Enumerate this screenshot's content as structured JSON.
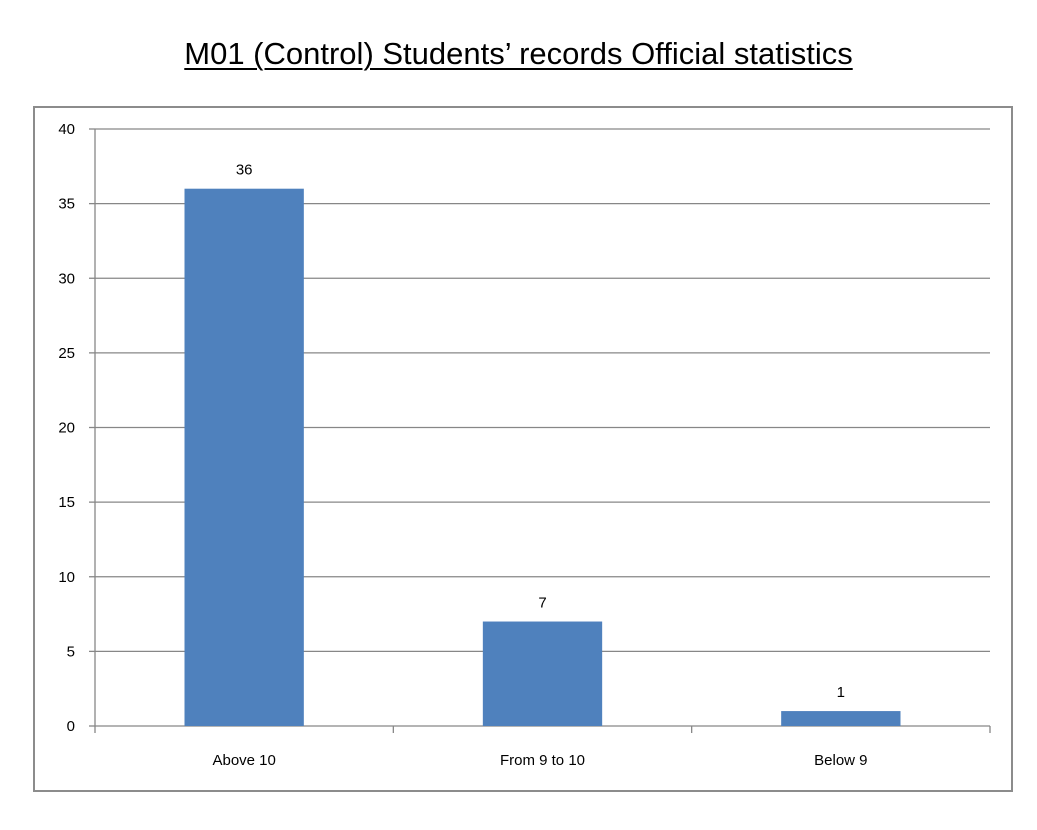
{
  "chart_data": {
    "type": "bar",
    "title": "M01 (Control) Students’ records Official statistics",
    "xlabel": "",
    "ylabel": "",
    "categories": [
      "Above 10",
      "From 9 to 10",
      "Below 9"
    ],
    "values": [
      36,
      7,
      1
    ],
    "data_labels": [
      "36",
      "7",
      "1"
    ],
    "ylim": [
      0,
      40
    ],
    "yticks": [
      0,
      5,
      10,
      15,
      20,
      25,
      30,
      35,
      40
    ],
    "ytick_labels": [
      "0",
      "5",
      "10",
      "15",
      "20",
      "25",
      "30",
      "35",
      "40"
    ],
    "grid": true,
    "legend": "none",
    "colors": {
      "bar": "#4f81bd",
      "grid": "#878787",
      "axis": "#878787",
      "frame": "#8c8c8c"
    }
  }
}
